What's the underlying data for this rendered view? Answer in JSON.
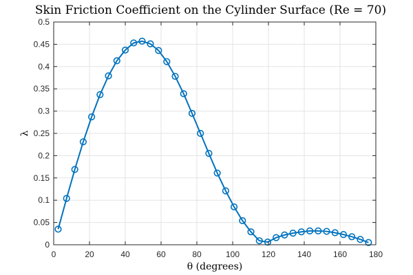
{
  "chart_data": {
    "type": "line",
    "title": "Skin Friction Coefficient on the Cylinder Surface (Re = 70)",
    "xlabel": "θ (degrees)",
    "ylabel": "λ",
    "xlim": [
      0,
      180
    ],
    "ylim": [
      0,
      0.5
    ],
    "xticks": [
      0,
      20,
      40,
      60,
      80,
      100,
      120,
      140,
      160,
      180
    ],
    "yticks": [
      0,
      0.05,
      0.1,
      0.15,
      0.2,
      0.25,
      0.3,
      0.35,
      0.4,
      0.45,
      0.5
    ],
    "grid": true,
    "marker": "circle",
    "color": "#0072BD",
    "series": [
      {
        "x": [
          2.5,
          7.2,
          11.8,
          16.5,
          21.2,
          25.9,
          30.6,
          35.3,
          40.0,
          44.7,
          49.4,
          54.0,
          58.6,
          63.2,
          67.9,
          72.6,
          77.3,
          82.0,
          86.7,
          91.4,
          96.1,
          100.8,
          105.5,
          110.2,
          114.9,
          119.6,
          124.3,
          129.0,
          133.7,
          138.4,
          143.1,
          147.8,
          152.5,
          157.2,
          161.9,
          166.6,
          171.3,
          175.9
        ],
        "y": [
          0.035,
          0.104,
          0.169,
          0.231,
          0.287,
          0.337,
          0.379,
          0.413,
          0.437,
          0.453,
          0.457,
          0.451,
          0.436,
          0.411,
          0.378,
          0.339,
          0.295,
          0.25,
          0.205,
          0.161,
          0.121,
          0.085,
          0.054,
          0.029,
          0.009,
          0.006,
          0.016,
          0.022,
          0.026,
          0.029,
          0.031,
          0.031,
          0.03,
          0.027,
          0.023,
          0.018,
          0.012,
          0.005
        ]
      }
    ]
  }
}
